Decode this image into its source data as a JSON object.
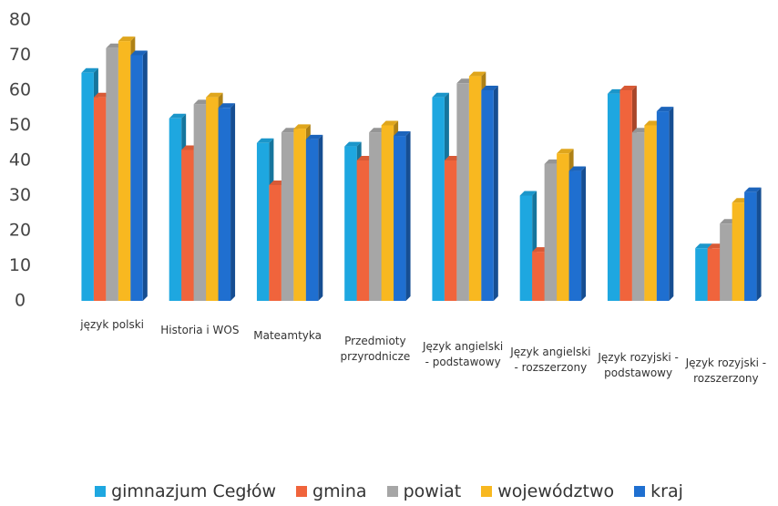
{
  "chart_data": {
    "type": "bar",
    "categories": [
      "język polski",
      "Historia i WOS",
      "Mateamtyka",
      "Przedmioty przyrodnicze",
      "Język angielski - podstawowy",
      "Język angielski - rozszerzony",
      "Język rozyjski - podstawowy",
      "Język rozyjski - rozszerzony"
    ],
    "series": [
      {
        "name": "gimnazjum Cegłów",
        "color": "#1ea7e0",
        "values": [
          65,
          52,
          45,
          44,
          58,
          30,
          59,
          15
        ]
      },
      {
        "name": "gmina",
        "color": "#f0643c",
        "values": [
          58,
          43,
          33,
          40,
          40,
          14,
          60,
          15
        ]
      },
      {
        "name": "powiat",
        "color": "#a6a6a6",
        "values": [
          72,
          56,
          48,
          48,
          62,
          39,
          48,
          22
        ]
      },
      {
        "name": "województwo",
        "color": "#f8b820",
        "values": [
          74,
          58,
          49,
          50,
          64,
          42,
          50,
          28
        ]
      },
      {
        "name": "kraj",
        "color": "#1f6fd0",
        "values": [
          70,
          55,
          46,
          47,
          60,
          37,
          54,
          31
        ]
      }
    ],
    "ylim": [
      0,
      80
    ],
    "yticks": [
      0,
      10,
      20,
      30,
      40,
      50,
      60,
      70,
      80
    ],
    "grid": false
  }
}
